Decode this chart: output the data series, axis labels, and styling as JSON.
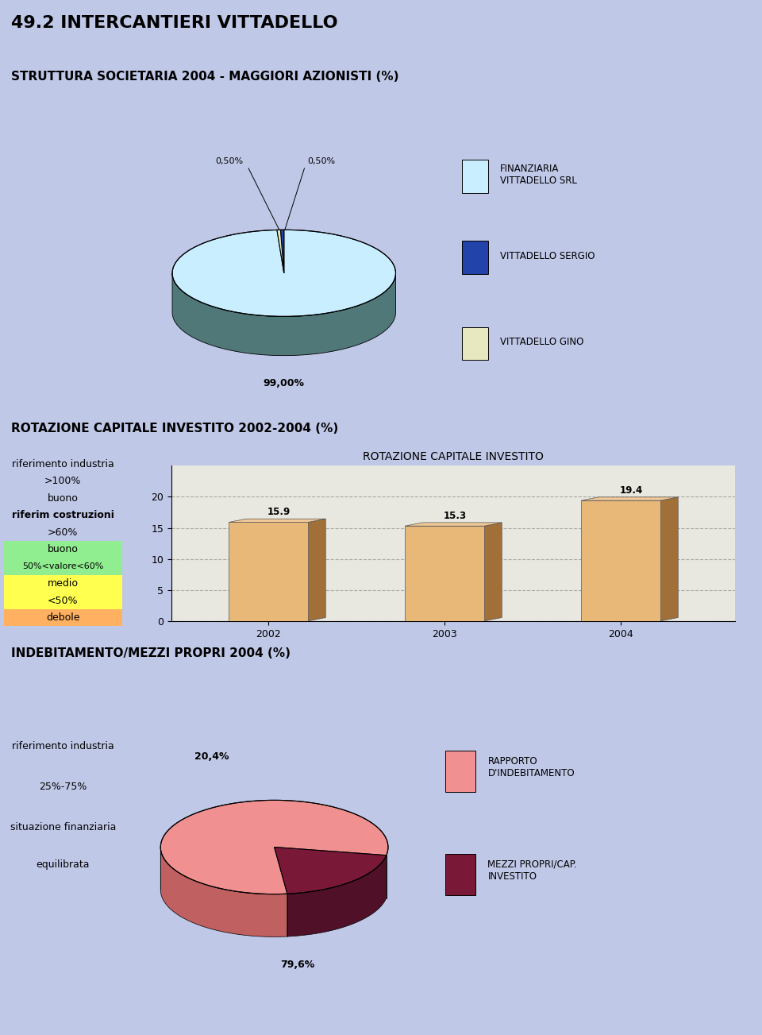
{
  "main_title": "49.2 INTERCANTIERI VITTADELLO",
  "bg_color": "#c0c8e8",
  "section1_title": "STRUTTURA SOCIETARIA 2004 - MAGGIORI AZIONISTI (%)",
  "section2_title": "ROTAZIONE CAPITALE INVESTITO 2002-2004 (%)",
  "bar_title": "ROTAZIONE CAPITALE INVESTITO",
  "bar_years": [
    "2002",
    "2003",
    "2004"
  ],
  "bar_values": [
    15.9,
    15.3,
    19.4
  ],
  "bar_color_face": "#e8b878",
  "bar_color_side": "#a07038",
  "bar_color_top": "#f0c898",
  "section3_title": "INDEBITAMENTO/MEZZI PROPRI 2004 (%)",
  "pie1_colors": [
    "#c8eeff",
    "#2244aa",
    "#e8e8c0"
  ],
  "pie1_side_color": "#507878",
  "pie2_pink": "#f09090",
  "pie2_dark": "#7a1838",
  "pie2_side_pink": "#c06060",
  "pie2_side_dark": "#501028"
}
